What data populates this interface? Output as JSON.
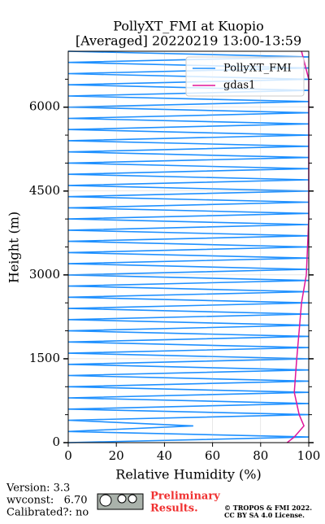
{
  "chart_data": {
    "type": "line",
    "title": "PollyXT_FMI at Kuopio",
    "subtitle": "[Averaged] 20220219 13:00-13:59",
    "x_label": "Relative Humidity (%)",
    "y_label": "Height (m)",
    "xlim": [
      0,
      100
    ],
    "ylim": [
      0,
      7000
    ],
    "xticks": [
      0,
      20,
      40,
      60,
      80,
      100
    ],
    "yticks": [
      0,
      1500,
      3000,
      4500,
      6000
    ],
    "yminor": [
      500,
      1000,
      2000,
      2500,
      3500,
      4000,
      5000,
      5500,
      6500
    ],
    "grid": true,
    "legend": "upper right",
    "series": [
      {
        "name": "PollyXT_FMI",
        "color": "#1e90ff",
        "heights": [
          0,
          100,
          200,
          300,
          400,
          500,
          600,
          700,
          800,
          900,
          1000,
          1100,
          1200,
          1300,
          1400,
          1500,
          1600,
          1700,
          1800,
          1900,
          2000,
          2100,
          2200,
          2300,
          2400,
          2500,
          2600,
          2700,
          2800,
          2900,
          3000,
          3100,
          3200,
          3300,
          3400,
          3500,
          3600,
          3700,
          3800,
          3900,
          4000,
          4100,
          4200,
          4300,
          4400,
          4500,
          4600,
          4700,
          4800,
          4900,
          5000,
          5100,
          5200,
          5300,
          5400,
          5500,
          5600,
          5700,
          5800,
          5900,
          6000,
          6100,
          6200,
          6300,
          6400,
          6500,
          6600,
          6700,
          6800,
          6900,
          7000
        ],
        "values": [
          0,
          100,
          0,
          52,
          0,
          100,
          0,
          100,
          0,
          100,
          0,
          100,
          0,
          100,
          0,
          100,
          0,
          100,
          0,
          100,
          0,
          100,
          0,
          100,
          0,
          100,
          0,
          100,
          0,
          100,
          0,
          100,
          0,
          100,
          0,
          100,
          0,
          100,
          0,
          100,
          0,
          100,
          0,
          100,
          0,
          100,
          0,
          100,
          0,
          100,
          0,
          100,
          0,
          100,
          0,
          100,
          0,
          100,
          0,
          100,
          0,
          100,
          0,
          100,
          0,
          100,
          0,
          100,
          0,
          100,
          0
        ]
      },
      {
        "name": "gdas1",
        "color": "#e0169b",
        "heights": [
          0,
          100,
          300,
          500,
          900,
          1500,
          2000,
          2500,
          3000,
          4000,
          5000,
          6000,
          6500,
          7000
        ],
        "values": [
          91,
          94,
          98,
          96,
          94,
          95,
          96,
          97,
          99,
          100,
          100,
          100,
          100,
          97
        ]
      }
    ],
    "annotations": [
      "Version: 3.3",
      "wvconst:   6.70",
      "Calibrated?: no",
      "Preliminary",
      "Results.",
      "© TROPOS & FMI 2022.",
      "CC BY SA 4.0 License."
    ]
  }
}
